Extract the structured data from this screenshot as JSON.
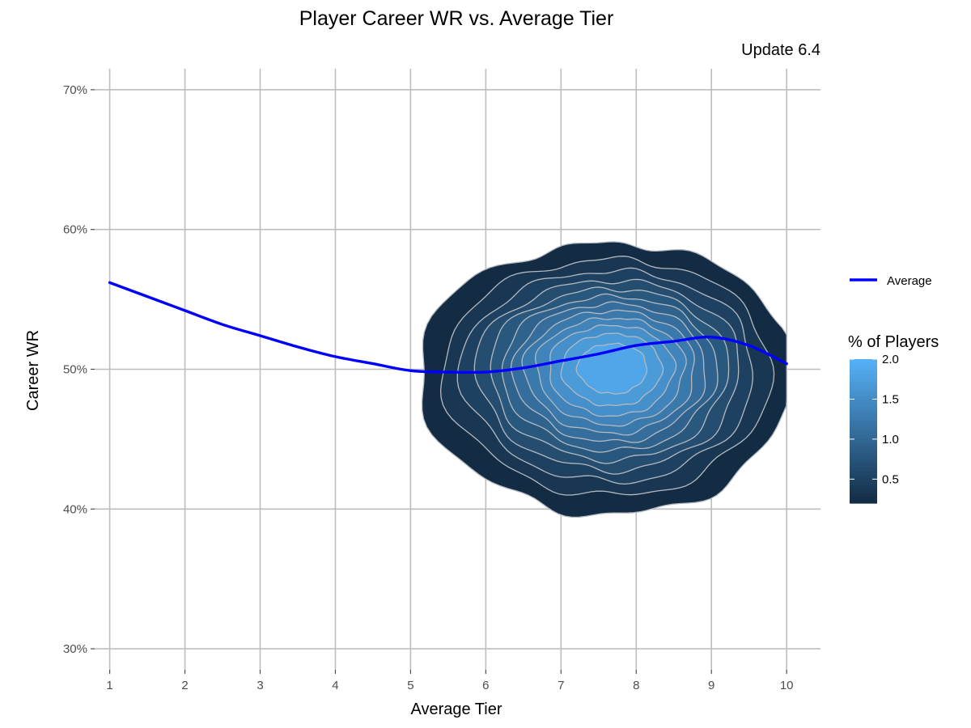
{
  "chart_data": {
    "type": "density-contour",
    "title": "Player Career WR vs. Average Tier",
    "subtitle": "Update 6.4",
    "xlabel": "Average Tier",
    "ylabel": "Career WR",
    "xlim": [
      0.8,
      10.45
    ],
    "ylim": [
      28.5,
      71.5
    ],
    "x_ticks": [
      1,
      2,
      3,
      4,
      5,
      6,
      7,
      8,
      9,
      10
    ],
    "x_tick_labels": [
      "1",
      "2",
      "3",
      "4",
      "5",
      "6",
      "7",
      "8",
      "9",
      "10"
    ],
    "y_ticks": [
      30,
      40,
      50,
      60,
      70
    ],
    "y_tick_labels": [
      "30%",
      "40%",
      "50%",
      "60%",
      "70%"
    ],
    "grid": true,
    "legend_position": "right",
    "series": [
      {
        "name": "Average",
        "color": "#0000ff",
        "x": [
          1,
          1.5,
          2,
          2.5,
          3,
          3.5,
          4,
          4.5,
          5,
          5.5,
          6,
          6.5,
          7,
          7.5,
          8,
          8.5,
          9,
          9.5,
          10
        ],
        "y": [
          56.2,
          55.2,
          54.2,
          53.2,
          52.4,
          51.6,
          50.9,
          50.4,
          49.9,
          49.8,
          49.8,
          50.1,
          50.6,
          51.1,
          51.7,
          52.0,
          52.3,
          51.7,
          50.4
        ]
      }
    ],
    "density": {
      "name": "% of Players",
      "center_x": 7.7,
      "center_y": 50.2,
      "peak": 2.0,
      "levels": [
        0.2,
        0.35,
        0.5,
        0.65,
        0.8,
        0.95,
        1.1,
        1.25,
        1.4,
        1.55,
        1.7,
        1.85
      ],
      "colorbar_ticks": [
        0.5,
        1.0,
        1.5,
        2.0
      ],
      "colorbar_tick_labels": [
        "0.5",
        "1.0",
        "1.5",
        "2.0"
      ],
      "color_low": "#132b43",
      "color_high": "#56b1f7",
      "contour_color": "#b4b9bf"
    }
  }
}
